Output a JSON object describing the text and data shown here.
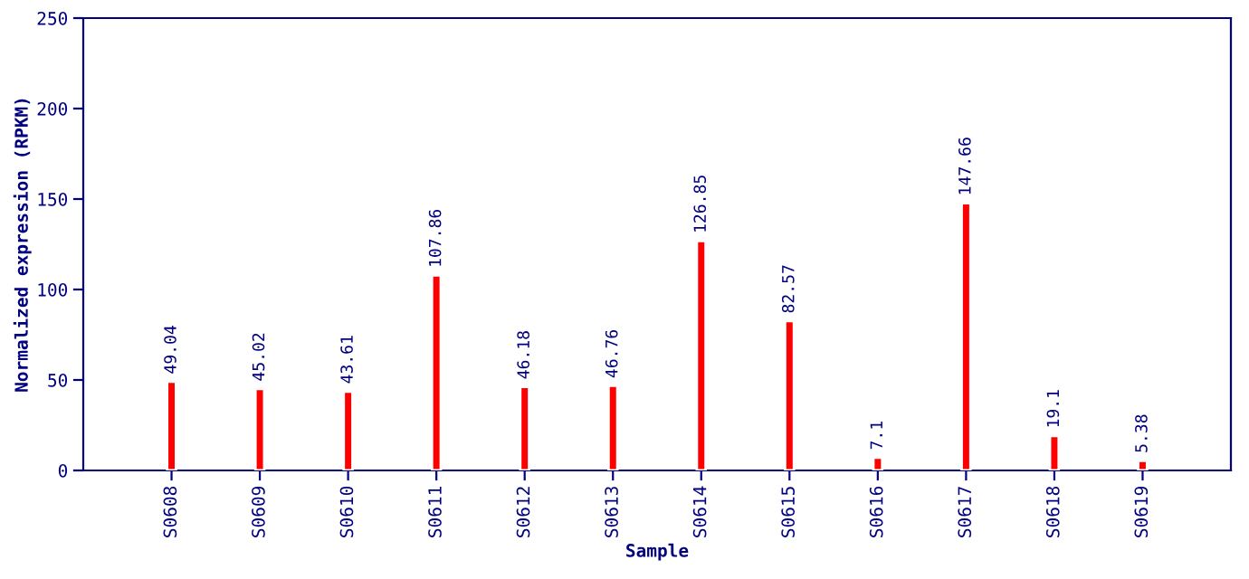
{
  "chart_data": {
    "type": "bar",
    "xlabel": "Sample",
    "ylabel": "Normalized expression (RPKM)",
    "categories": [
      "S0608",
      "S0609",
      "S0610",
      "S0611",
      "S0612",
      "S0613",
      "S0614",
      "S0615",
      "S0616",
      "S0617",
      "S0618",
      "S0619"
    ],
    "values": [
      49.04,
      45.02,
      43.61,
      107.86,
      46.18,
      46.76,
      126.85,
      82.57,
      7.1,
      147.66,
      19.1,
      5.38
    ],
    "color": "#ff0000",
    "ylim": [
      0,
      250
    ],
    "yticks": [
      0,
      50,
      100,
      150,
      200,
      250
    ],
    "grid": false,
    "data_labels": true
  }
}
